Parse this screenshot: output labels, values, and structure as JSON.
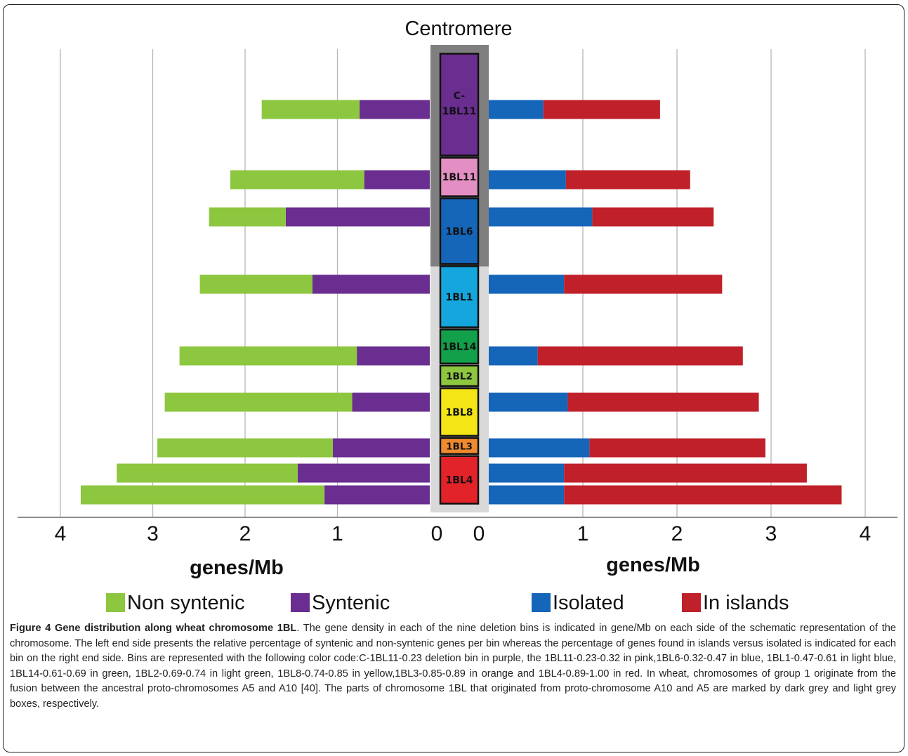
{
  "chart_data": {
    "type": "bar",
    "orientation": "horizontal-butterfly",
    "title": "Centromere",
    "left_xlabel": "genes/Mb",
    "right_xlabel": "genes/Mb",
    "xlim": [
      0,
      4
    ],
    "left_ticks": [
      "4",
      "3",
      "2",
      "1",
      "0"
    ],
    "right_ticks": [
      "0",
      "1",
      "2",
      "3",
      "4"
    ],
    "grid": true,
    "bins": [
      "C-1BL11",
      "1BL11",
      "1BL6",
      "1BL1",
      "1BL14",
      "1BL2",
      "1BL8",
      "1BL3",
      "1BL4"
    ],
    "bin_colors": [
      "#6a2d90",
      "#e48fc3",
      "#1565b8",
      "#14a6dd",
      "#13a04a",
      "#8dc63f",
      "#f3e516",
      "#f08a2f",
      "#e2232a"
    ],
    "bin_extent": [
      0,
      0.23,
      0.32,
      0.47,
      0.61,
      0.69,
      0.74,
      0.85,
      0.89,
      1.0
    ],
    "proto_chromosome_boxes": [
      {
        "label": "A10",
        "color": "#7f7f7f",
        "bins": [
          "C-1BL11",
          "1BL11",
          "1BL6"
        ]
      },
      {
        "label": "A5",
        "color": "#d9d9d9",
        "bins": [
          "1BL1",
          "1BL14",
          "1BL2",
          "1BL8",
          "1BL3",
          "1BL4"
        ]
      }
    ],
    "left_series": [
      {
        "name": "Syntenic",
        "color": "#6a2d90",
        "values": [
          0.76,
          0.71,
          1.56,
          1.27,
          0.79,
          0.84,
          1.05,
          1.43,
          1.14
        ]
      },
      {
        "name": "Non syntenic",
        "color": "#8dc63f",
        "values": [
          1.06,
          1.45,
          0.83,
          1.22,
          1.92,
          2.03,
          1.9,
          1.96,
          2.64
        ]
      }
    ],
    "right_series": [
      {
        "name": "Isolated",
        "color": "#1565b8",
        "values": [
          0.58,
          0.82,
          1.1,
          0.8,
          0.52,
          0.84,
          1.07,
          0.8,
          0.8
        ]
      },
      {
        "name": "In islands",
        "color": "#c0202a",
        "values": [
          1.24,
          1.32,
          1.29,
          1.68,
          2.18,
          2.03,
          1.87,
          2.58,
          2.95
        ]
      }
    ],
    "legend": [
      "Non syntenic",
      "Syntenic",
      "Isolated",
      "In islands"
    ],
    "legend_placement": "bottom"
  },
  "caption": {
    "bold": "Figure 4 Gene distribution along wheat chromosome 1BL",
    "text": ". The gene density in each of the nine deletion bins is indicated in gene/Mb on each side of the schematic representation of the chromosome. The left end side presents the relative percentage of syntenic and non-syntenic genes per bin whereas the percentage of genes found in islands versus isolated is indicated for each bin on the right end side. Bins are represented with the following color code:C-1BL11-0.23 deletion bin in purple, the 1BL11-0.23-0.32 in pink,1BL6-0.32-0.47 in blue, 1BL1-0.47-0.61 in light blue, 1BL14-0.61-0.69 in green, 1BL2-0.69-0.74 in light green, 1BL8-0.74-0.85 in yellow,1BL3-0.85-0.89 in orange and 1BL4-0.89-1.00 in red. In wheat, chromosomes of group 1 originate from the fusion between the ancestral proto-chromosomes A5 and A10 [40]. The parts of chromosome 1BL that originated from proto-chromosome A10 and A5 are marked by dark grey and light grey boxes, respectively."
  }
}
